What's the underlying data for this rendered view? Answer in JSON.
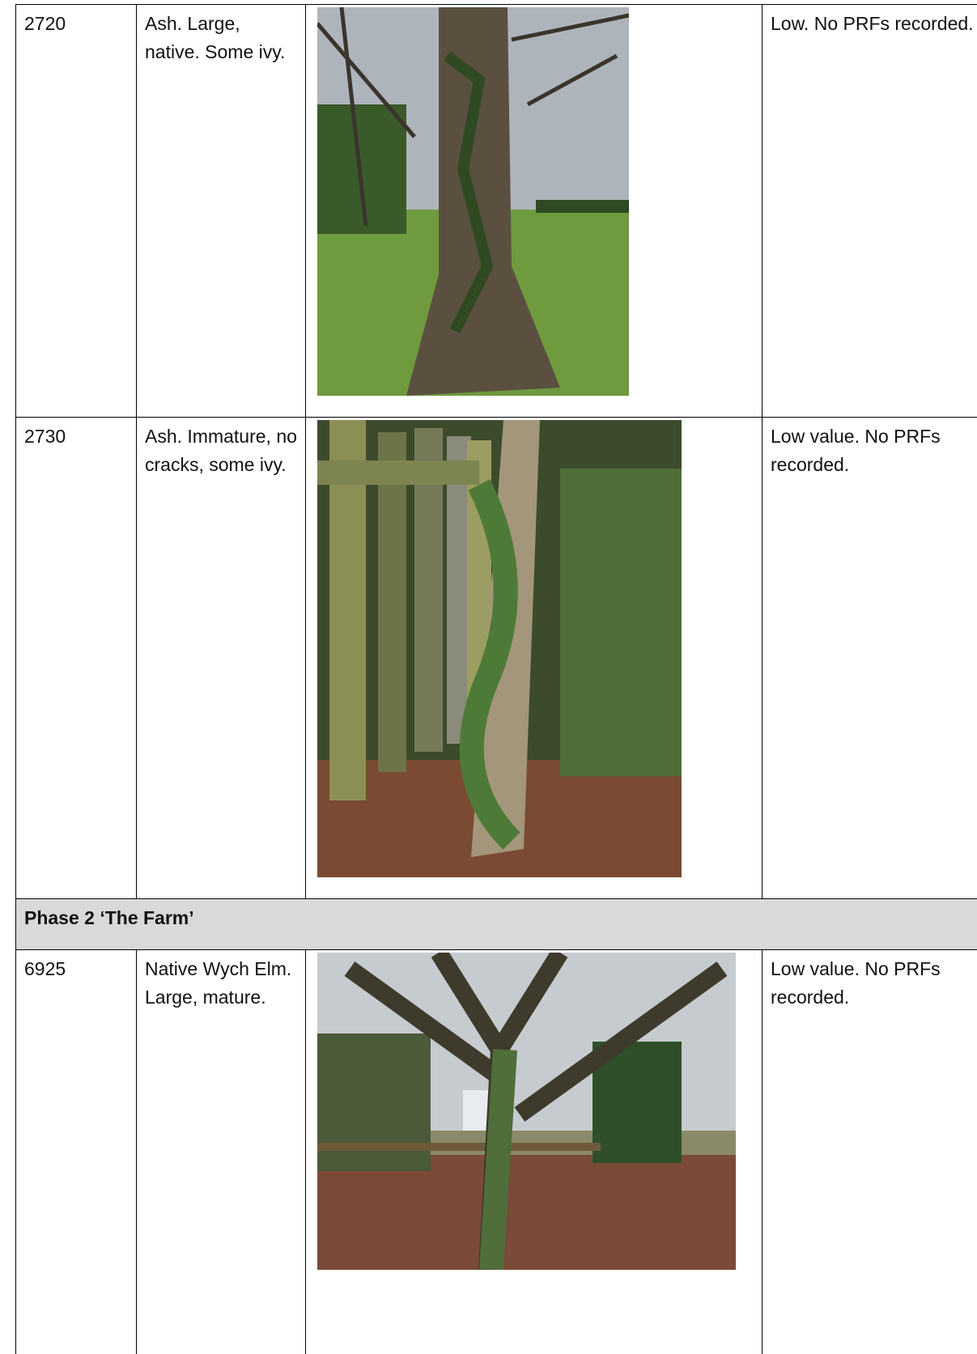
{
  "table": {
    "rows": [
      {
        "id": "2720",
        "description": "Ash. Large, native. Some ivy.",
        "assessment": "Low. No PRFs recorded."
      },
      {
        "id": "2730",
        "description": "Ash. Immature, no cracks, some ivy.",
        "assessment": "Low value. No PRFs recorded."
      }
    ],
    "section": {
      "title": "Phase 2 ‘The Farm’",
      "rows": [
        {
          "id": "6925",
          "description": "Native Wych Elm. Large, mature.",
          "assessment": "Low value. No PRFs recorded."
        }
      ]
    }
  }
}
